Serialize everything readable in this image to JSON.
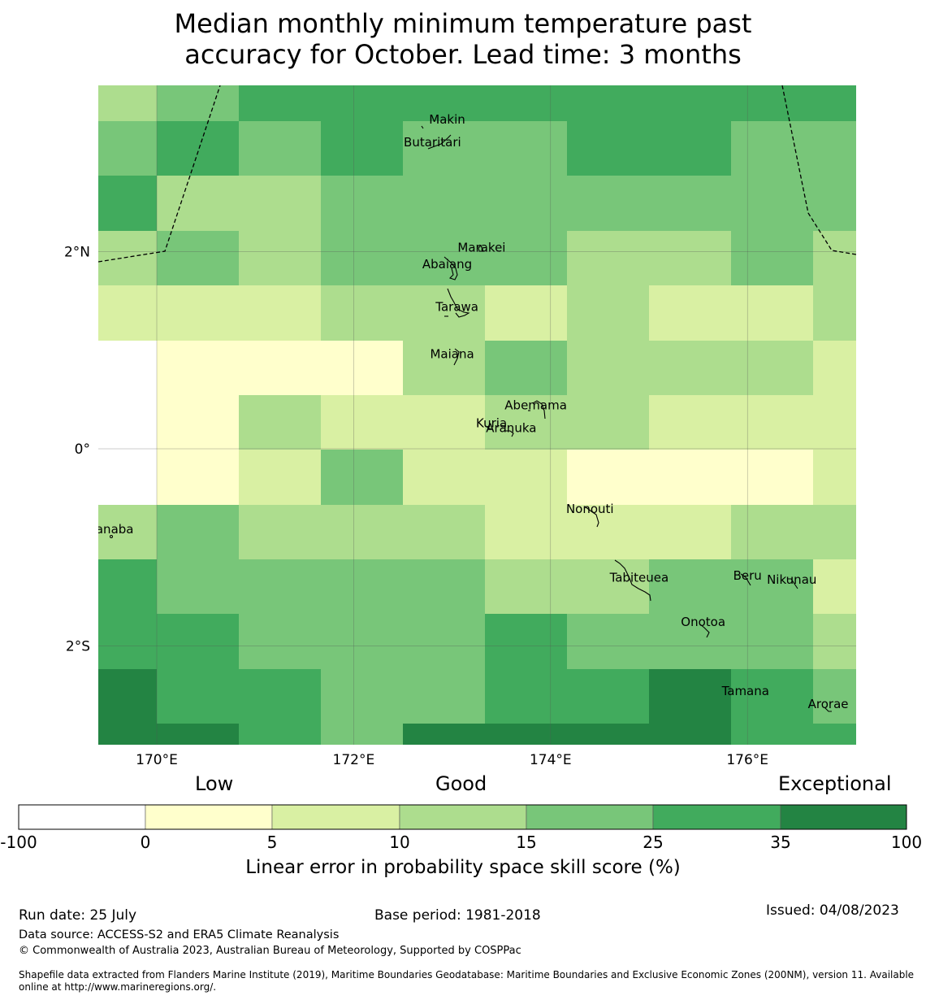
{
  "title": {
    "line1": "Median monthly minimum temperature past",
    "line2": "accuracy for October. Lead time: 3 months"
  },
  "map": {
    "lat_labels": [
      "2°N",
      "0°",
      "2°S"
    ],
    "lon_labels": [
      "170°E",
      "172°E",
      "174°E",
      "176°E"
    ],
    "islands": [
      {
        "name": "Makin",
        "lon": 172.95,
        "lat": 3.3
      },
      {
        "name": "Butaritari",
        "lon": 172.8,
        "lat": 3.07
      },
      {
        "name": "Marakei",
        "lon": 173.3,
        "lat": 2.0
      },
      {
        "name": "Abaiang",
        "lon": 172.95,
        "lat": 1.83
      },
      {
        "name": "Tarawa",
        "lon": 173.05,
        "lat": 1.4
      },
      {
        "name": "Maiana",
        "lon": 173.0,
        "lat": 0.92
      },
      {
        "name": "Abemama",
        "lon": 173.85,
        "lat": 0.4
      },
      {
        "name": "Kuria",
        "lon": 173.4,
        "lat": 0.22
      },
      {
        "name": "Aranuka",
        "lon": 173.6,
        "lat": 0.17
      },
      {
        "name": "Nonouti",
        "lon": 174.4,
        "lat": -0.65
      },
      {
        "name": "Banaba",
        "lon": 169.53,
        "lat": -0.86
      },
      {
        "name": "Tabiteuea",
        "lon": 174.9,
        "lat": -1.35
      },
      {
        "name": "Beru",
        "lon": 176.0,
        "lat": -1.33
      },
      {
        "name": "Nikunau",
        "lon": 176.45,
        "lat": -1.37
      },
      {
        "name": "Onotoa",
        "lon": 175.55,
        "lat": -1.8
      },
      {
        "name": "Tamana",
        "lon": 175.98,
        "lat": -2.5
      },
      {
        "name": "Arorae",
        "lon": 176.82,
        "lat": -2.63
      }
    ],
    "eez_boundary_color": "#000000"
  },
  "legend": {
    "categories": [
      "Low",
      "Good",
      "Exceptional"
    ],
    "ticks": [
      "-100",
      "0",
      "5",
      "10",
      "15",
      "25",
      "35",
      "100"
    ],
    "colors": [
      "#ffffff",
      "#ffffcc",
      "#d9f0a3",
      "#addd8e",
      "#78c679",
      "#41ab5d",
      "#238443"
    ],
    "label": "Linear error in probability space skill score (%)"
  },
  "grid_colors_rows_top_to_bottom": [
    [
      3,
      4,
      5,
      5,
      5,
      5,
      5,
      5,
      5,
      5
    ],
    [
      4,
      5,
      4,
      5,
      4,
      4,
      5,
      5,
      4,
      4
    ],
    [
      5,
      3,
      3,
      4,
      4,
      4,
      4,
      4,
      4,
      4
    ],
    [
      3,
      4,
      3,
      4,
      4,
      4,
      3,
      3,
      4,
      3
    ],
    [
      2,
      2,
      2,
      3,
      3,
      2,
      3,
      2,
      2,
      3
    ],
    [
      0,
      1,
      1,
      1,
      3,
      4,
      3,
      3,
      3,
      2
    ],
    [
      0,
      1,
      3,
      2,
      2,
      3,
      3,
      2,
      2,
      2
    ],
    [
      0,
      1,
      2,
      4,
      2,
      2,
      1,
      1,
      1,
      2
    ],
    [
      3,
      4,
      3,
      3,
      3,
      2,
      2,
      2,
      3,
      3
    ],
    [
      5,
      4,
      4,
      4,
      4,
      3,
      3,
      4,
      4,
      2
    ],
    [
      5,
      5,
      4,
      4,
      4,
      5,
      4,
      4,
      4,
      3
    ],
    [
      6,
      5,
      5,
      4,
      4,
      5,
      5,
      6,
      5,
      4
    ],
    [
      6,
      6,
      5,
      4,
      6,
      6,
      6,
      6,
      5,
      5
    ]
  ],
  "footer": {
    "run_date": "Run date: 25 July",
    "base_period": "Base period: 1981-2018",
    "issued": "Issued: 04/08/2023",
    "data_source": "Data source: ACCESS-S2 and ERA5 Climate Reanalysis",
    "copyright": "© Commonwealth of Australia 2023, Australian Bureau of Meteorology, Supported by COSPPac",
    "shapefile_line1": "Shapefile data extracted from Flanders Marine Institute (2019), Maritime Boundaries Geodatabase: Maritime Boundaries and Exclusive Economic Zones (200NM), version 11. Available",
    "shapefile_line2": "online at http://www.marineregions.org/."
  }
}
